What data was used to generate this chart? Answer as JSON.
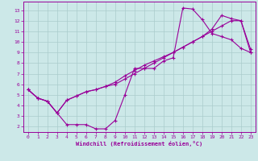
{
  "xlabel": "Windchill (Refroidissement éolien,°C)",
  "bg_color": "#cce8e8",
  "grid_color": "#aacccc",
  "line_color": "#990099",
  "xlim": [
    -0.5,
    23.5
  ],
  "ylim": [
    1.5,
    13.8
  ],
  "xticks": [
    0,
    1,
    2,
    3,
    4,
    5,
    6,
    7,
    8,
    9,
    10,
    11,
    12,
    13,
    14,
    15,
    16,
    17,
    18,
    19,
    20,
    21,
    22,
    23
  ],
  "yticks": [
    2,
    3,
    4,
    5,
    6,
    7,
    8,
    9,
    10,
    11,
    12,
    13
  ],
  "line1_x": [
    0,
    1,
    2,
    3,
    4,
    5,
    6,
    7,
    8,
    9,
    10,
    11,
    12,
    13,
    14,
    15,
    16,
    17,
    18,
    19,
    20,
    21,
    22,
    23
  ],
  "line1_y": [
    5.5,
    4.7,
    4.4,
    3.3,
    2.2,
    2.2,
    2.2,
    1.8,
    1.8,
    2.6,
    5.0,
    7.5,
    7.5,
    7.5,
    8.2,
    8.5,
    13.2,
    13.1,
    12.1,
    10.8,
    10.5,
    10.2,
    9.4,
    9.0
  ],
  "line2_x": [
    0,
    1,
    2,
    3,
    4,
    5,
    6,
    7,
    8,
    9,
    10,
    11,
    12,
    13,
    14,
    15,
    16,
    17,
    18,
    19,
    20,
    21,
    22,
    23
  ],
  "line2_y": [
    5.5,
    4.7,
    4.4,
    3.3,
    4.5,
    4.9,
    5.3,
    5.5,
    5.8,
    6.2,
    6.8,
    7.3,
    7.8,
    8.2,
    8.6,
    9.0,
    9.5,
    10.0,
    10.5,
    11.0,
    11.5,
    12.0,
    12.0,
    9.3
  ],
  "line3_x": [
    0,
    1,
    2,
    3,
    4,
    5,
    6,
    7,
    8,
    9,
    10,
    11,
    12,
    13,
    14,
    15,
    16,
    17,
    18,
    19,
    20,
    21,
    22,
    23
  ],
  "line3_y": [
    5.5,
    4.7,
    4.4,
    3.3,
    4.5,
    4.9,
    5.3,
    5.5,
    5.8,
    6.0,
    6.5,
    7.0,
    7.5,
    8.0,
    8.5,
    9.0,
    9.5,
    10.0,
    10.5,
    11.2,
    12.5,
    12.2,
    12.0,
    9.0
  ],
  "xlabel_fontsize": 5,
  "tick_fontsize": 4.5
}
